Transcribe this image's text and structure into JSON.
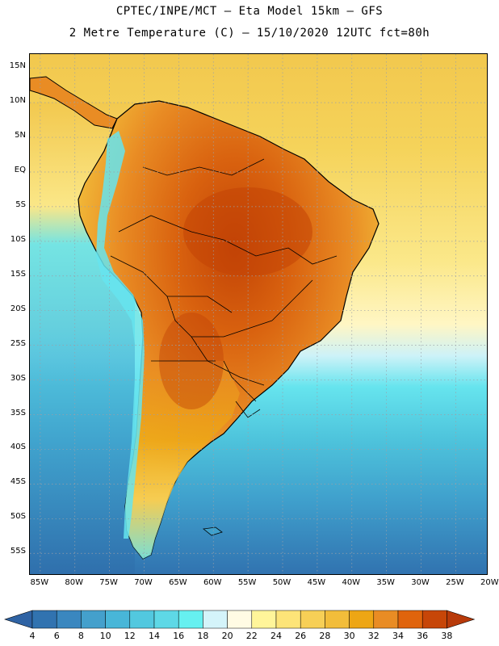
{
  "title": {
    "line1": "CPTEC/INPE/MCT –  Eta Model 15km – GFS",
    "line2": "2 Metre Temperature (C) – 15/10/2020 12UTC fct=80h"
  },
  "map": {
    "region": "South America",
    "lat_labels": [
      "15N",
      "10N",
      "5N",
      "EQ",
      "5S",
      "10S",
      "15S",
      "20S",
      "25S",
      "30S",
      "35S",
      "40S",
      "45S",
      "50S",
      "55S"
    ],
    "lat_values": [
      15,
      10,
      5,
      0,
      -5,
      -10,
      -15,
      -20,
      -25,
      -30,
      -35,
      -40,
      -45,
      -50,
      -55
    ],
    "lon_labels": [
      "85W",
      "80W",
      "75W",
      "70W",
      "65W",
      "60W",
      "55W",
      "50W",
      "45W",
      "40W",
      "35W",
      "30W",
      "25W",
      "20W"
    ],
    "lon_values": [
      -85,
      -80,
      -75,
      -70,
      -65,
      -60,
      -55,
      -50,
      -45,
      -40,
      -35,
      -30,
      -25,
      -20
    ],
    "lat_range": [
      -58,
      17
    ],
    "lon_range": [
      -86.5,
      -20.5
    ],
    "gridlines": "dotted",
    "colors": {
      "ocean_north": "#f5d35a",
      "ocean_mid": "#fff6a8",
      "ocean_south": "#5ed8e6",
      "ocean_deep": "#3a8fc4",
      "land_hot": "#c94a08",
      "land_warm": "#e88a24",
      "land_mild": "#f2c24a",
      "andes": "#6ee8ee",
      "border": "#000000"
    }
  },
  "colorbar": {
    "labels": [
      "4",
      "6",
      "8",
      "10",
      "12",
      "14",
      "16",
      "18",
      "20",
      "22",
      "24",
      "26",
      "28",
      "30",
      "32",
      "34",
      "36",
      "38"
    ],
    "colors": [
      "#3173b0",
      "#3a87bf",
      "#44a0cc",
      "#48b6d8",
      "#52c8df",
      "#5ed8e6",
      "#66f0f0",
      "#d4f4fa",
      "#fffbe4",
      "#fff59a",
      "#fde478",
      "#f7cf56",
      "#f2bd3a",
      "#eda615",
      "#e98c24",
      "#e0640c",
      "#c74608"
    ],
    "left_arrow_color": "#2f63a4",
    "right_arrow_color": "#b83a0a"
  }
}
